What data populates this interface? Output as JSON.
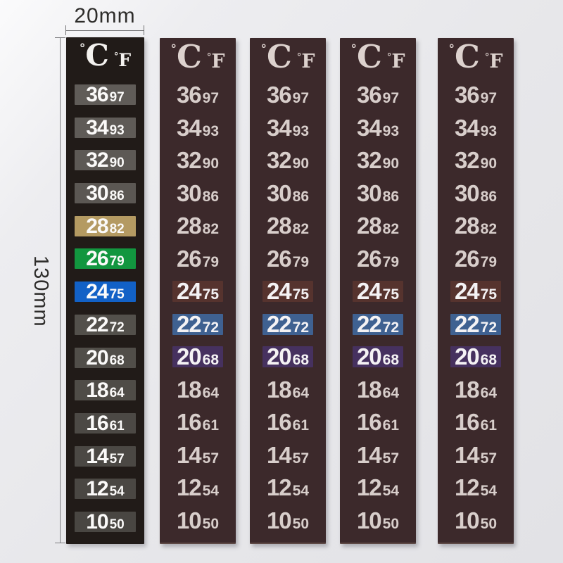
{
  "annotations": {
    "width_label": "20mm",
    "height_label": "130mm"
  },
  "strip_header": {
    "degree": "°",
    "celsius_letter": "C",
    "fahrenheit_letter": "F"
  },
  "temperature_rows": [
    {
      "c": "36",
      "f": "97"
    },
    {
      "c": "34",
      "f": "93"
    },
    {
      "c": "32",
      "f": "90"
    },
    {
      "c": "30",
      "f": "86"
    },
    {
      "c": "28",
      "f": "82"
    },
    {
      "c": "26",
      "f": "79"
    },
    {
      "c": "24",
      "f": "75"
    },
    {
      "c": "22",
      "f": "72"
    },
    {
      "c": "20",
      "f": "68"
    },
    {
      "c": "18",
      "f": "64"
    },
    {
      "c": "16",
      "f": "61"
    },
    {
      "c": "14",
      "f": "57"
    },
    {
      "c": "12",
      "f": "54"
    },
    {
      "c": "10",
      "f": "50"
    }
  ],
  "colors": {
    "small_strip_bg": "#211b18",
    "large_strip_bg": "#3c292b",
    "small_text": "#fbfaf9",
    "large_text": "#d8cecb",
    "large_highlight_text": "#f4f2f4",
    "small_row_backgrounds": [
      "#605c58",
      "#5f5b57",
      "#5d5955",
      "#5b5753",
      "#b49a62",
      "#12963f",
      "#1261c6",
      "#53504b",
      "#514e49",
      "#4f4c47",
      "#4c4945",
      "#4b4844",
      "#4a4743",
      "#494642"
    ],
    "large_row_backgrounds": [
      null,
      null,
      null,
      null,
      null,
      null,
      "#56332e",
      "#3f6191",
      "#46315f",
      null,
      null,
      null,
      null,
      null
    ]
  },
  "large_strip_count": 4
}
